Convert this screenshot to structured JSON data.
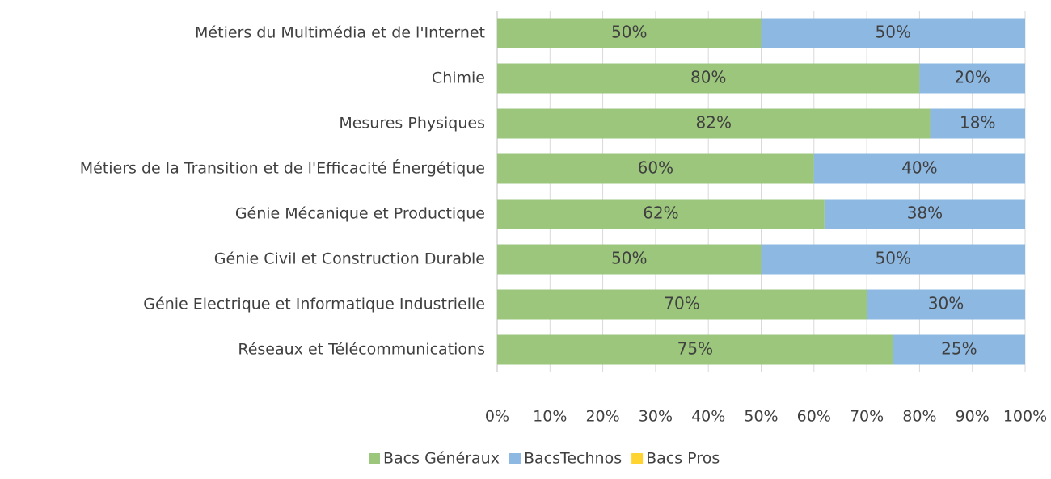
{
  "chart_data": {
    "type": "stacked_barh",
    "categories": [
      "Métiers du Multimédia et de l'Internet",
      "Chimie",
      "Mesures Physiques",
      "Métiers de la Transition et de l'Efficacité Énergétique",
      "Génie Mécanique et Productique",
      "Génie Civil et Construction Durable",
      "Génie Electrique et Informatique Industrielle",
      "Réseaux et Télécommunications"
    ],
    "series": [
      {
        "name": "Bacs Généraux",
        "color": "#9bc67c",
        "values": [
          50,
          80,
          82,
          60,
          62,
          50,
          70,
          75
        ],
        "value_labels": [
          "50%",
          "80%",
          "82%",
          "60%",
          "62%",
          "50%",
          "70%",
          "75%"
        ]
      },
      {
        "name": "BacsTechnos",
        "color": "#8db8e2",
        "values": [
          50,
          20,
          18,
          40,
          38,
          50,
          30,
          25
        ],
        "value_labels": [
          "50%",
          "20%",
          "18%",
          "40%",
          "38%",
          "50%",
          "30%",
          "25%"
        ]
      },
      {
        "name": "Bacs Pros",
        "color": "#ffd430",
        "values": [
          0,
          0,
          0,
          0,
          0,
          0,
          0,
          0
        ]
      }
    ],
    "xlim": [
      0,
      100
    ],
    "xticks": [
      {
        "value": 0,
        "label": "0%"
      },
      {
        "value": 10,
        "label": "10%"
      },
      {
        "value": 20,
        "label": "20%"
      },
      {
        "value": 30,
        "label": "30%"
      },
      {
        "value": 40,
        "label": "40%"
      },
      {
        "value": 50,
        "label": "50%"
      },
      {
        "value": 60,
        "label": "60%"
      },
      {
        "value": 70,
        "label": "70%"
      },
      {
        "value": 80,
        "label": "80%"
      },
      {
        "value": 90,
        "label": "90%"
      },
      {
        "value": 100,
        "label": "100%"
      }
    ],
    "grid": true,
    "legend": "bottom"
  }
}
